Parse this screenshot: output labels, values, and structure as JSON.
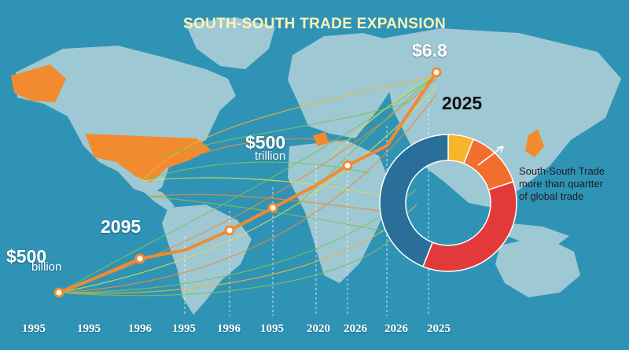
{
  "chart_data": {
    "type": "line",
    "title": "SOUTH-SOUTH TRADE EXPANSION",
    "x_tick_labels": [
      "1995",
      "1995",
      "1996",
      "1995",
      "1996",
      "1095",
      "2020",
      "2026",
      "2026",
      "2025"
    ],
    "series": [
      {
        "values": [
          0,
          5,
          12,
          15,
          22,
          30,
          38,
          45,
          52,
          78
        ]
      }
    ],
    "annotations": [
      {
        "text": "$500",
        "sub": "billion"
      },
      {
        "text": "2095"
      },
      {
        "text": "$500",
        "sub": "trillion"
      },
      {
        "text": "$6.8"
      },
      {
        "text": "2025"
      }
    ],
    "donut": {
      "segments": [
        {
          "color": "#f6b62a",
          "value": 6
        },
        {
          "color": "#f26e2f",
          "value": 14
        },
        {
          "color": "#e23a3a",
          "value": 36
        },
        {
          "color": "#2a6f99",
          "value": 44
        }
      ],
      "note_lines": [
        "South-South Trade",
        "more than quartter",
        "of global trade"
      ]
    },
    "colors": {
      "ocean": "#2f93b6",
      "land": "#9ec8d4",
      "highlight_land": "#f28a30",
      "line": "#f28a30",
      "marker_fill": "#ffffff",
      "title": "#fff3b8"
    }
  }
}
